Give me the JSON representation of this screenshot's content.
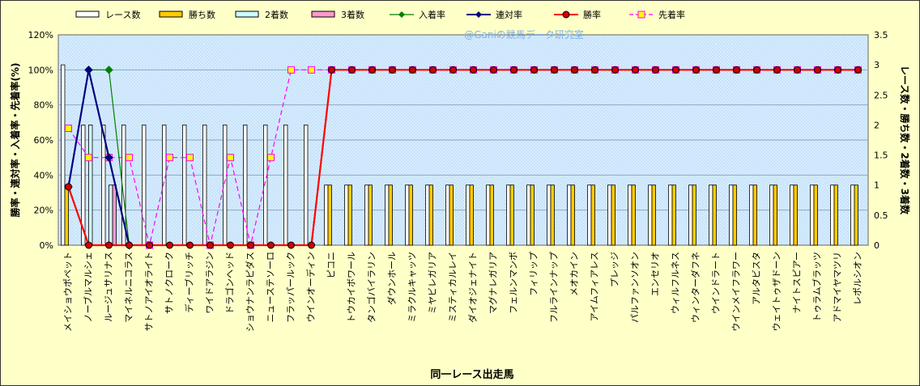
{
  "chart_data": {
    "type": "bar",
    "title": "",
    "watermark": "@Ganiの競馬データ研究室",
    "xlabel": "同一レース出走馬",
    "ylabel_left": "勝率・連対率・入着率・先着率(%)",
    "ylabel_right": "レース数・勝ち数・2着数・3着数",
    "ylim_left": [
      0,
      120
    ],
    "ylim_right": [
      0,
      3.5
    ],
    "yticks_left": [
      "0%",
      "20%",
      "40%",
      "60%",
      "80%",
      "100%",
      "120%"
    ],
    "yticks_right": [
      "0",
      "0.5",
      "1",
      "1.5",
      "2",
      "2.5",
      "3",
      "3.5"
    ],
    "legend_position": "top",
    "categories": [
      "メイショウポペット",
      "ノーブルマルシェ",
      "ルージュサリナス",
      "マイネルニコラス",
      "サトノアイオライト",
      "サトノクローク",
      "ディーブリッチ",
      "ワイドアラジン",
      "ドラゴンヘッド",
      "ショウナンラピダス",
      "ニューステソーロ",
      "フラッパールック",
      "ウインオーディン",
      "ピコニ",
      "トウカイボワール",
      "タンゴバイラリン",
      "ダウンホール",
      "ミラクルキャッツ",
      "ミヤビレガリア",
      "ミスティカルレイ",
      "ダイオジェナイト",
      "マグナレガリア",
      "フェルンマンボ",
      "フィリップ",
      "フルラインナップ",
      "メオカイン",
      "アイムフィアレス",
      "プレッジ",
      "パルファンソオン",
      "エンセリオ",
      "ウィルフルネス",
      "ウィンターダフネ",
      "ウインドラート",
      "ウインメイフラワー",
      "アルタビスタ",
      "ウェイトゥザドーン",
      "ナイトスピアー",
      "トゥラムブラッツ",
      "アドマイヤマツリ",
      "レポルシオン"
    ],
    "series": [
      {
        "name": "レース数",
        "type": "bar",
        "axis": "right",
        "color": "#ffffff",
        "values": [
          3,
          2,
          2,
          2,
          2,
          2,
          2,
          2,
          2,
          2,
          2,
          2,
          2,
          1,
          1,
          1,
          1,
          1,
          1,
          1,
          1,
          1,
          1,
          1,
          1,
          1,
          1,
          1,
          1,
          1,
          1,
          1,
          1,
          1,
          1,
          1,
          1,
          1,
          1,
          1
        ]
      },
      {
        "name": "勝ち数",
        "type": "bar",
        "axis": "right",
        "color": "#ffcc00",
        "values": [
          1,
          0,
          0,
          0,
          0,
          0,
          0,
          0,
          0,
          0,
          0,
          0,
          0,
          1,
          1,
          1,
          1,
          1,
          1,
          1,
          1,
          1,
          1,
          1,
          1,
          1,
          1,
          1,
          1,
          1,
          1,
          1,
          1,
          1,
          1,
          1,
          1,
          1,
          1,
          1
        ]
      },
      {
        "name": "2着数",
        "type": "bar",
        "axis": "right",
        "color": "#ccffff",
        "values": [
          0,
          2,
          1,
          0,
          0,
          0,
          0,
          0,
          0,
          0,
          0,
          0,
          0,
          0,
          0,
          0,
          0,
          0,
          0,
          0,
          0,
          0,
          0,
          0,
          0,
          0,
          0,
          0,
          0,
          0,
          0,
          0,
          0,
          0,
          0,
          0,
          0,
          0,
          0,
          0
        ]
      },
      {
        "name": "3着数",
        "type": "bar",
        "axis": "right",
        "color": "#ff99cc",
        "values": [
          0,
          0,
          1,
          0,
          0,
          0,
          0,
          0,
          0,
          0,
          0,
          0,
          0,
          0,
          0,
          0,
          0,
          0,
          0,
          0,
          0,
          0,
          0,
          0,
          0,
          0,
          0,
          0,
          0,
          0,
          0,
          0,
          0,
          0,
          0,
          0,
          0,
          0,
          0,
          0
        ]
      },
      {
        "name": "入着率",
        "type": "line",
        "axis": "left",
        "color": "#008000",
        "values": [
          33.3,
          100,
          100,
          0,
          null,
          null,
          null,
          null,
          null,
          null,
          null,
          null,
          null,
          null,
          null,
          null,
          null,
          null,
          null,
          null,
          null,
          null,
          null,
          null,
          null,
          null,
          null,
          null,
          null,
          null,
          null,
          null,
          null,
          null,
          null,
          null,
          null,
          null,
          null,
          null
        ]
      },
      {
        "name": "連対率",
        "type": "line",
        "axis": "left",
        "color": "#000080",
        "values": [
          33.3,
          100,
          50,
          0,
          null,
          null,
          null,
          null,
          null,
          null,
          null,
          null,
          null,
          null,
          null,
          null,
          null,
          null,
          null,
          null,
          null,
          null,
          null,
          null,
          null,
          null,
          null,
          null,
          null,
          null,
          null,
          null,
          null,
          null,
          null,
          null,
          null,
          null,
          null,
          null
        ]
      },
      {
        "name": "勝率",
        "type": "line",
        "axis": "left",
        "color": "#ff0000",
        "values": [
          33.3,
          0,
          0,
          0,
          0,
          0,
          0,
          0,
          0,
          0,
          0,
          0,
          0,
          100,
          100,
          100,
          100,
          100,
          100,
          100,
          100,
          100,
          100,
          100,
          100,
          100,
          100,
          100,
          100,
          100,
          100,
          100,
          100,
          100,
          100,
          100,
          100,
          100,
          100,
          100
        ]
      },
      {
        "name": "先着率",
        "type": "line",
        "axis": "left",
        "color": "#ff00ff",
        "values": [
          66.7,
          50,
          50,
          50,
          0,
          50,
          50,
          0,
          50,
          0,
          50,
          100,
          100,
          100,
          100,
          100,
          100,
          100,
          100,
          100,
          100,
          100,
          100,
          100,
          100,
          100,
          100,
          100,
          100,
          100,
          100,
          100,
          100,
          100,
          100,
          100,
          100,
          100,
          100,
          100
        ]
      }
    ]
  }
}
